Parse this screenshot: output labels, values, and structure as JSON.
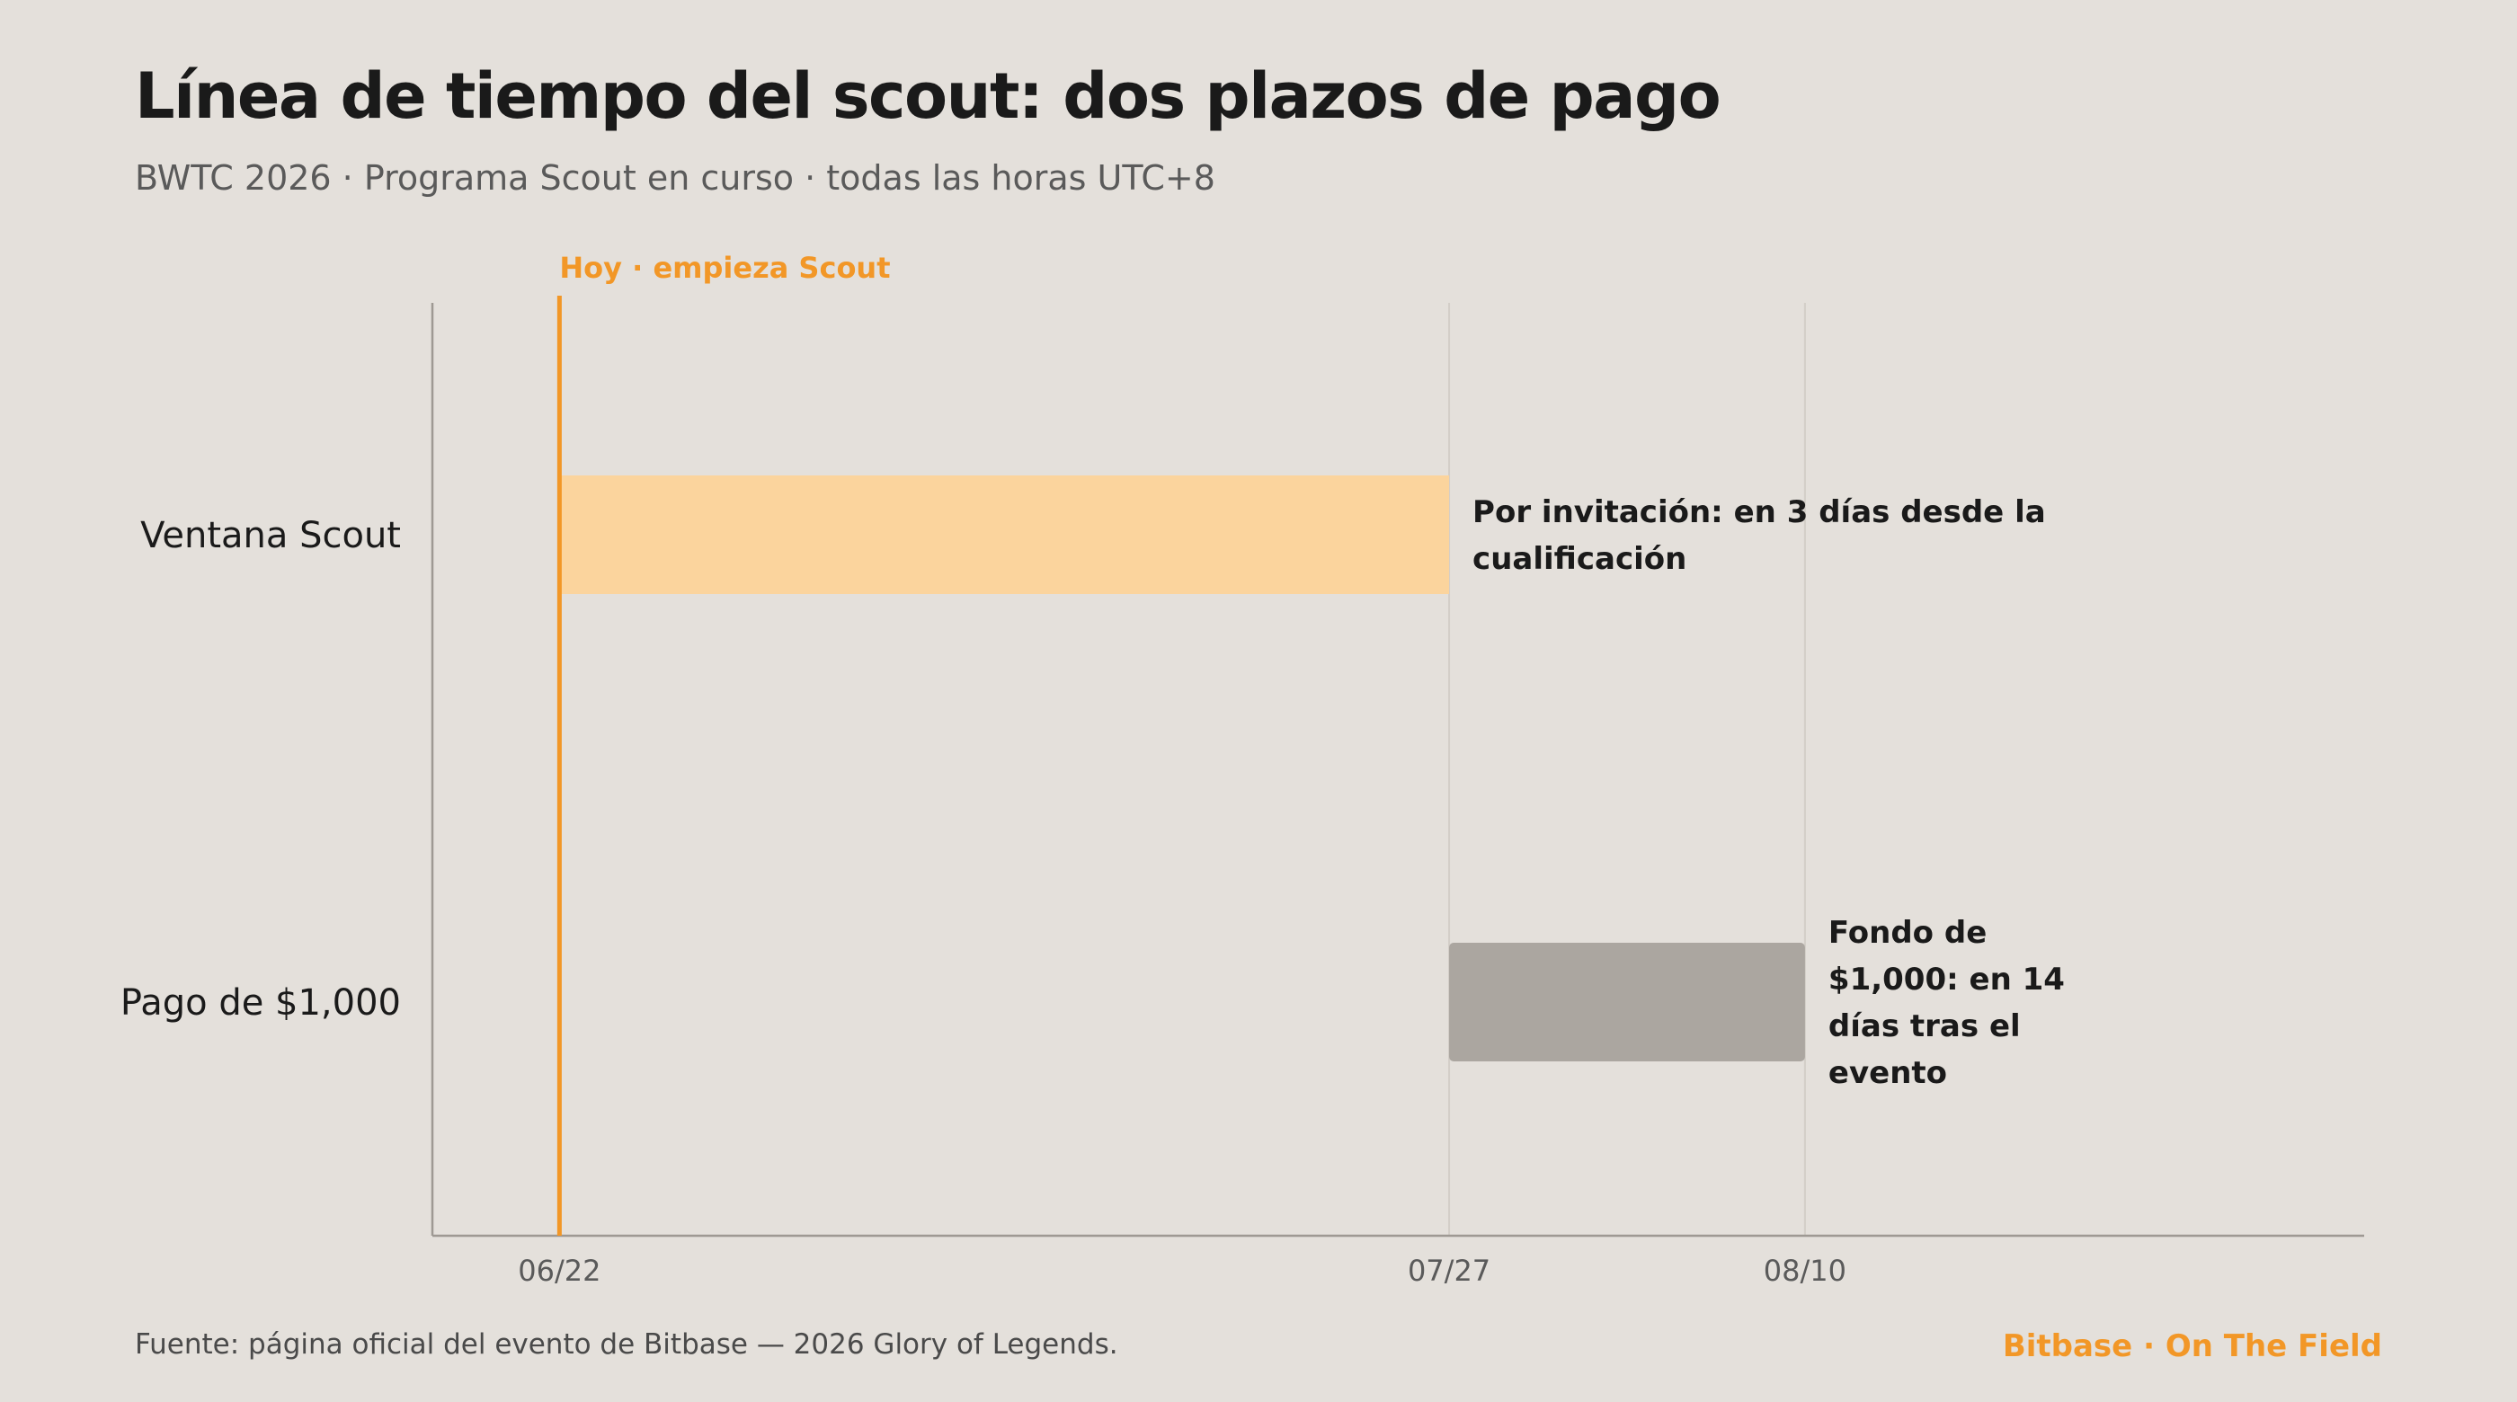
{
  "header": {
    "title": "Línea de tiempo del scout: dos plazos de pago",
    "subtitle": "BWTC 2026 · Programa Scout en curso · todas las horas UTC+8"
  },
  "footer": {
    "source": "Fuente: página oficial del evento de Bitbase — 2026 Glory of Legends.",
    "brand": "Bitbase · On The Field"
  },
  "colors": {
    "background": "#E4E0DB",
    "accent": "#F29727",
    "scout_bar": "#FBD49D",
    "payment_bar": "#ABA6A0",
    "axis": "#9E9993",
    "gridline": "#D3CEC8",
    "text": "#1A1A1A",
    "muted_text": "#5A5A5A"
  },
  "chart_data": {
    "type": "gantt",
    "x_axis": {
      "type": "date",
      "range": [
        "2026-06-17",
        "2026-09-01"
      ],
      "ticks": [
        {
          "date": "2026-06-22",
          "label": "06/22"
        },
        {
          "date": "2026-07-27",
          "label": "07/27"
        },
        {
          "date": "2026-08-10",
          "label": "08/10"
        }
      ],
      "grid": true
    },
    "rows": [
      {
        "label": "Ventana Scout",
        "start": "2026-06-22",
        "end": "2026-07-27",
        "color": "#FBD49D",
        "annotation": [
          "Por invitación: en 3 días desde la",
          "cualificación"
        ]
      },
      {
        "label": "Pago de $1,000",
        "start": "2026-07-27",
        "end": "2026-08-10",
        "color": "#ABA6A0",
        "annotation": [
          "Fondo de",
          "$1,000: en 14",
          "días tras el",
          "evento"
        ]
      }
    ],
    "marker": {
      "date": "2026-06-22",
      "label": "Hoy · empieza Scout",
      "color": "#F29727"
    }
  }
}
